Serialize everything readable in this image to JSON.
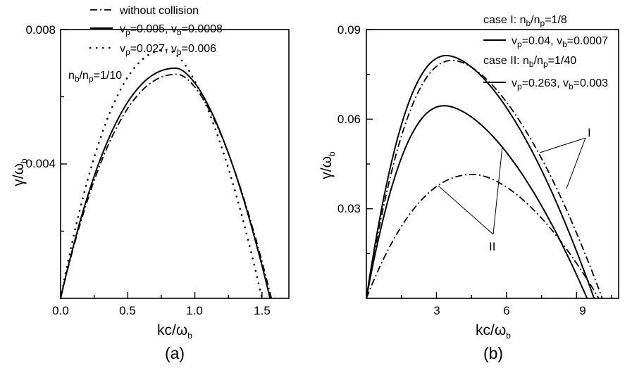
{
  "chart_data": [
    {
      "type": "line",
      "panel_label": "(a)",
      "xlabel_main": "kc/ω",
      "xlabel_sub": "b",
      "ylabel_main": "γ/ω",
      "ylabel_sub": "b",
      "xlim": [
        0,
        1.7
      ],
      "ylim": [
        0,
        0.008
      ],
      "x_ticks": [
        "0.0",
        "0.5",
        "1.0",
        "1.5"
      ],
      "y_ticks": [
        "0.004",
        "0.008"
      ],
      "annotation": {
        "t1": "n",
        "s1": "b",
        "t2": "/n",
        "s2": "p",
        "t3": "=1/10"
      },
      "legend": [
        {
          "style": "dashdot",
          "text": "without collision"
        },
        {
          "style": "solid",
          "t1": "v",
          "s1": "p",
          "t2": "=0.005,  v",
          "s2": "b",
          "t3": "=0.0008"
        },
        {
          "style": "dotted",
          "t1": "v",
          "s1": "p",
          "t2": "=0.027,  v",
          "s2": "b",
          "t3": "=0.006"
        }
      ],
      "series": [
        {
          "style": "dashdot",
          "peak_x": 0.87,
          "peak_y": 0.00667,
          "x_end": 1.57
        },
        {
          "style": "solid",
          "peak_x": 0.86,
          "peak_y": 0.00685,
          "x_end": 1.56
        },
        {
          "style": "dotted",
          "peak_x": 0.79,
          "peak_y": 0.0074,
          "x_end": 1.5
        }
      ]
    },
    {
      "type": "line",
      "panel_label": "(b)",
      "xlabel_main": "kc/ω",
      "xlabel_sub": "b",
      "ylabel_main": "γ/ω",
      "ylabel_sub": "b",
      "xlim": [
        0,
        10.8
      ],
      "ylim": [
        0,
        0.09
      ],
      "x_ticks": [
        "3",
        "6",
        "9"
      ],
      "y_ticks": [
        "0.03",
        "0.06",
        "0.09"
      ],
      "legend": [
        {
          "kind": "title",
          "t1": "case I:   n",
          "s1": "b",
          "t2": "/n",
          "s2": "p",
          "t3": "=1/8"
        },
        {
          "style": "solid",
          "t1": "v",
          "s1": "p",
          "t2": "=0.04,  v",
          "s2": "b",
          "t3": "=0.0007"
        },
        {
          "kind": "title",
          "t1": "case II:   n",
          "s1": "b",
          "t2": "/n",
          "s2": "p",
          "t3": "=1/40"
        },
        {
          "style": "solid",
          "t1": "v",
          "s1": "p",
          "t2": "=0.263,  v",
          "s2": "b",
          "t3": "=0.003"
        }
      ],
      "case_labels": [
        "I",
        "II"
      ],
      "series": [
        {
          "case": "I",
          "style": "solid",
          "peak_x": 3.45,
          "peak_y": 0.0813,
          "x_end": 9.75
        },
        {
          "case": "I",
          "style": "dashdot",
          "peak_x": 3.7,
          "peak_y": 0.0797,
          "x_end": 10.1
        },
        {
          "case": "II",
          "style": "solid",
          "peak_x": 3.35,
          "peak_y": 0.0645,
          "x_end": 9.45
        },
        {
          "case": "II",
          "style": "dashdot",
          "peak_x": 4.6,
          "peak_y": 0.0415,
          "x_end": 9.95
        }
      ]
    }
  ]
}
